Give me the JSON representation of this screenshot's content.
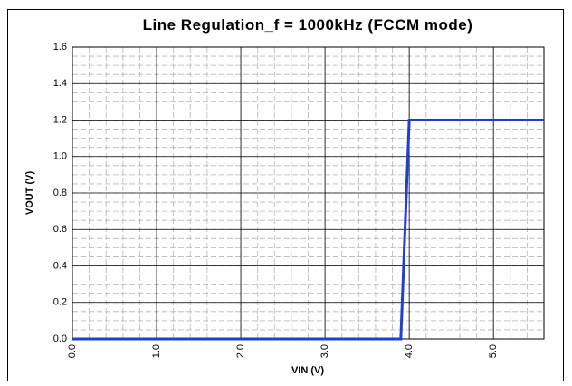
{
  "chart_data": {
    "type": "line",
    "title": "Line Regulation_f = 1000kHz (FCCM mode)",
    "xlabel": "VIN (V)",
    "ylabel": "VOUT (V)",
    "x": [
      0,
      3.9,
      4.0,
      5.6
    ],
    "series": [
      {
        "name": "VOUT",
        "color": "#1f3fd0",
        "values": [
          0,
          0,
          1.2,
          1.2
        ]
      }
    ],
    "xlim": [
      0,
      5.6
    ],
    "ylim": [
      0,
      1.6
    ],
    "xticks": [
      {
        "value": 0,
        "label": "0.0"
      },
      {
        "value": 1,
        "label": "1.0"
      },
      {
        "value": 2,
        "label": "2.0"
      },
      {
        "value": 3,
        "label": "3.0"
      },
      {
        "value": 4,
        "label": "4.0"
      },
      {
        "value": 5,
        "label": "5.0"
      }
    ],
    "yticks": [
      {
        "value": 0,
        "label": "0.0"
      },
      0.2,
      0.4,
      0.6,
      0.8,
      {
        "value": 1,
        "label": "1.0"
      },
      1.2,
      1.4,
      1.6
    ],
    "grid": true,
    "minor_grid": true
  }
}
